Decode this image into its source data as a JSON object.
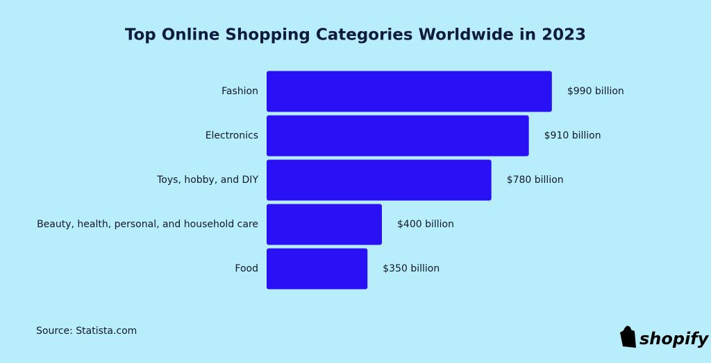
{
  "chart_data": {
    "type": "bar",
    "orientation": "horizontal",
    "title": "Top Online Shopping Categories Worldwide in 2023",
    "categories": [
      "Fashion",
      "Electronics",
      "Toys, hobby, and DIY",
      "Beauty, health, personal, and household care",
      "Food"
    ],
    "values": [
      990,
      910,
      780,
      400,
      350
    ],
    "value_labels": [
      "$990 billion",
      "$910 billion",
      "$780 billion",
      "$400 billion",
      "$350 billion"
    ],
    "color": "#2a10f5",
    "xlim": [
      0,
      1000
    ],
    "source": "Source: Statista.com"
  },
  "brand": "shopify"
}
